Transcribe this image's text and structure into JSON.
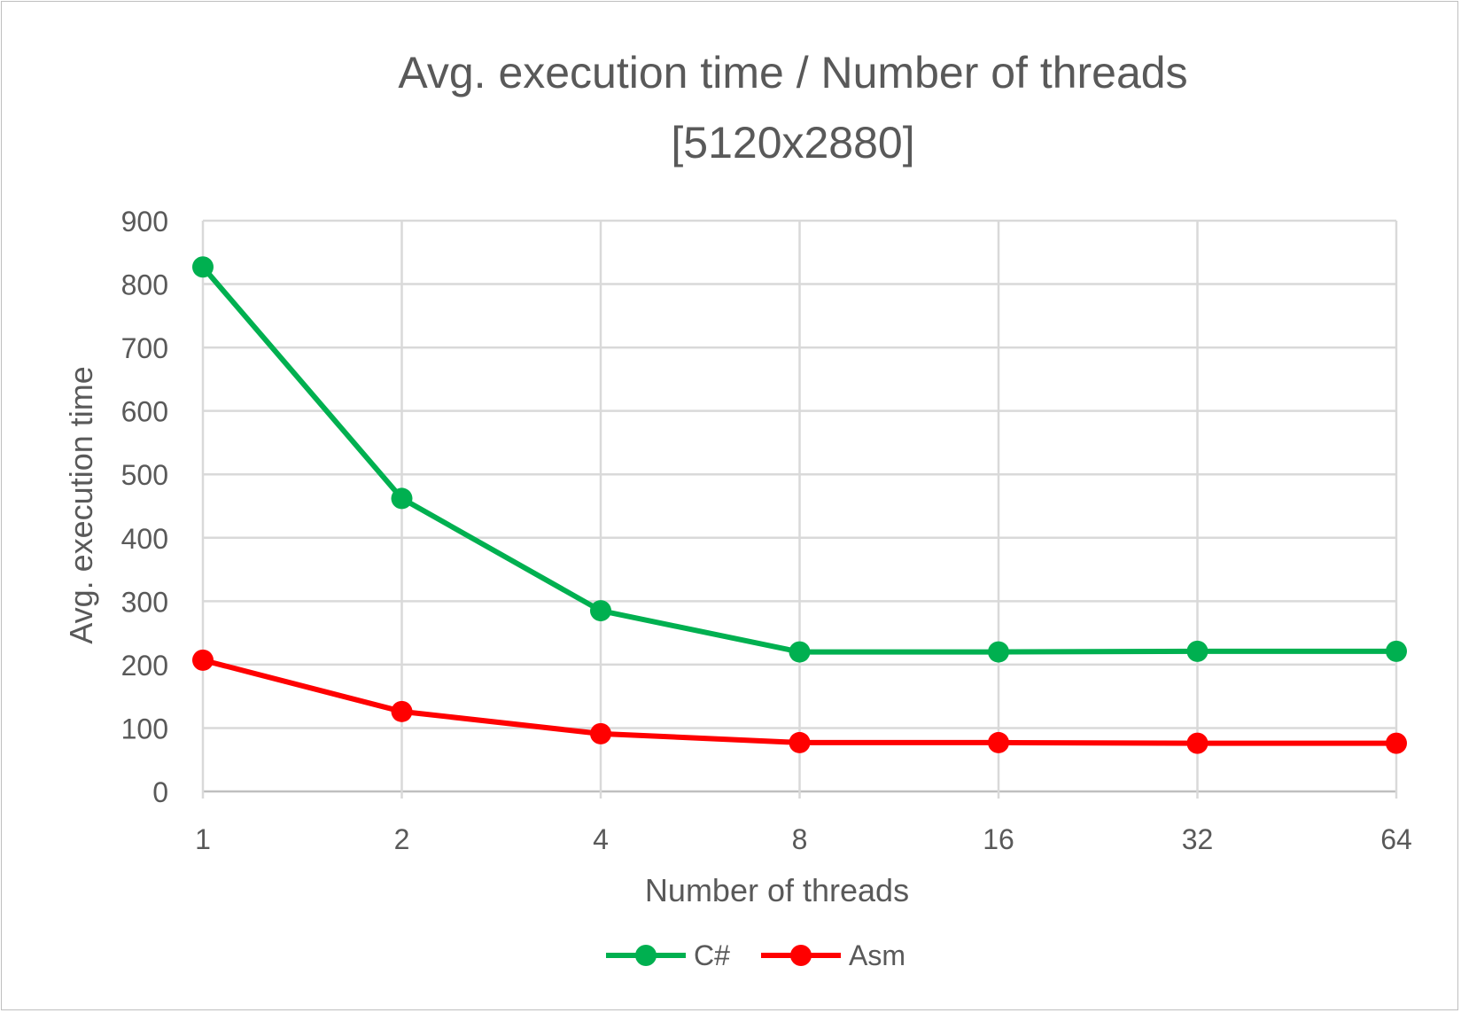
{
  "chart_data": {
    "type": "line",
    "title": "Avg. execution time / Number of threads",
    "subtitle": "[5120x2880]",
    "xlabel": "Number of threads",
    "ylabel": "Avg. execution time",
    "categories": [
      "1",
      "2",
      "4",
      "8",
      "16",
      "32",
      "64"
    ],
    "ylim": [
      0,
      900
    ],
    "yticks": [
      "0",
      "100",
      "200",
      "300",
      "400",
      "500",
      "600",
      "700",
      "800",
      "900"
    ],
    "grid": true,
    "legend_position": "bottom",
    "series": [
      {
        "name": "C#",
        "color": "#00b050",
        "values": [
          827,
          462,
          285,
          220,
          220,
          221,
          221
        ]
      },
      {
        "name": "Asm",
        "color": "#ff0000",
        "values": [
          207,
          126,
          91,
          77,
          77,
          76,
          76
        ]
      }
    ]
  }
}
